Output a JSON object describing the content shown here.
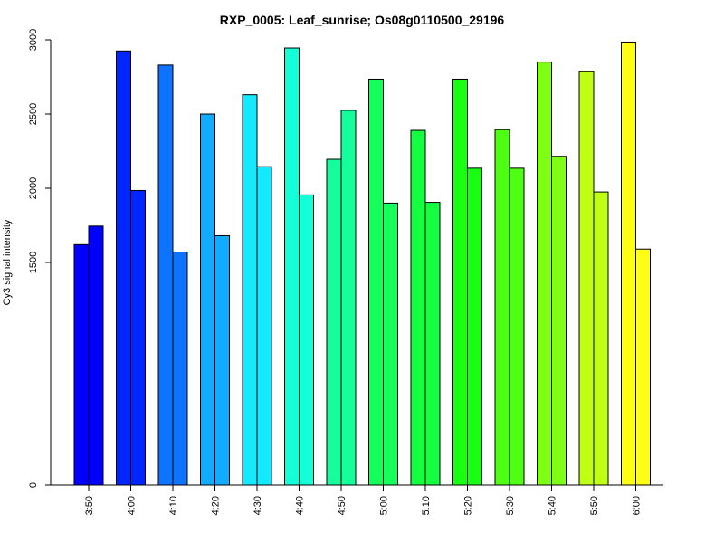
{
  "chart_data": {
    "type": "bar",
    "title": "RXP_0005: Leaf_sunrise; Os08g0110500_29196",
    "xlabel": "",
    "ylabel": "Cy3 signal intensity",
    "ylim": [
      0,
      3000
    ],
    "yticks": [
      0,
      1500,
      2000,
      2500,
      3000
    ],
    "grid": false,
    "categories": [
      "3:50",
      "4:00",
      "4:10",
      "4:20",
      "4:30",
      "4:40",
      "4:50",
      "5:00",
      "5:10",
      "5:20",
      "5:30",
      "5:40",
      "5:50",
      "6:00"
    ],
    "series": [
      {
        "values": [
          1620,
          2925,
          2830,
          2500,
          2630,
          2945,
          2195,
          2735,
          2390,
          2735,
          2395,
          2850,
          2785,
          2985
        ]
      },
      {
        "values": [
          1745,
          1985,
          1570,
          1680,
          2145,
          1955,
          2525,
          1900,
          1905,
          2135,
          2135,
          2215,
          1975,
          1590
        ]
      }
    ],
    "colors": [
      "#0000FF",
      "#0026FF",
      "#0E74FF",
      "#11ACFF",
      "#14EAFF",
      "#14FFD8",
      "#14FF9B",
      "#14FF59",
      "#14FF3F",
      "#18FF14",
      "#4EFF14",
      "#7EFF14",
      "#BFFF14",
      "#FFFF14"
    ]
  }
}
